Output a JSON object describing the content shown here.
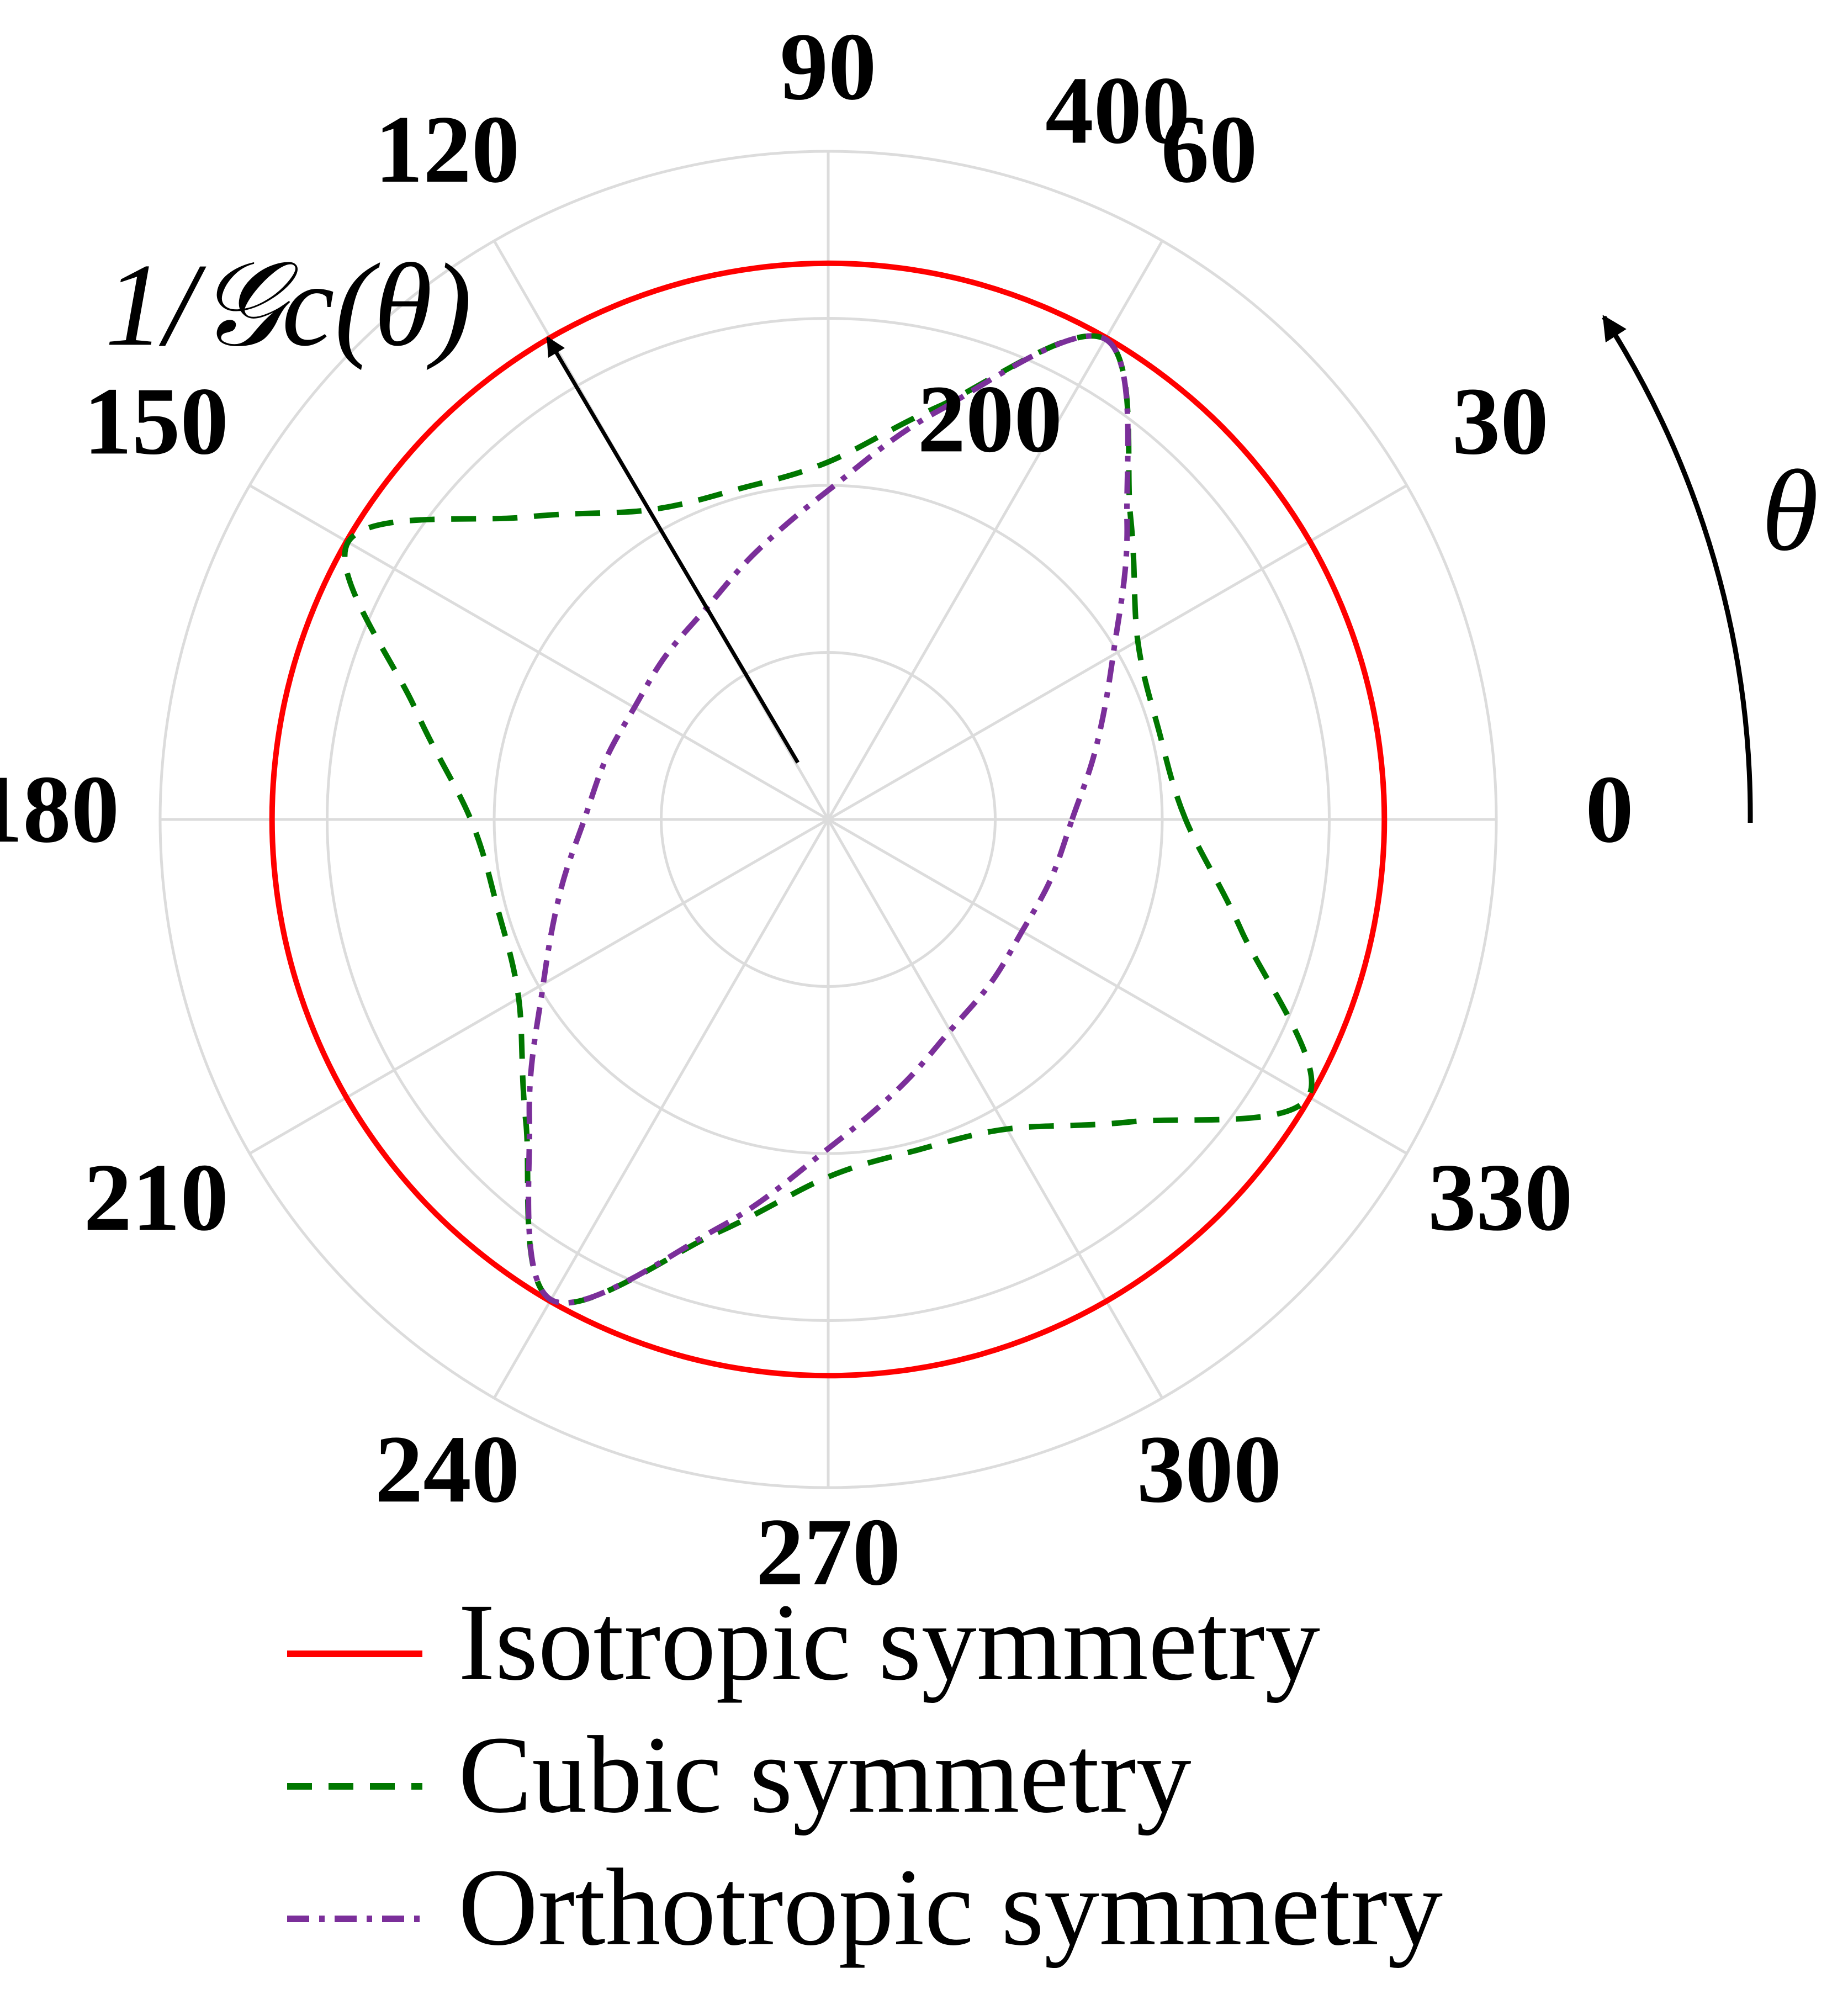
{
  "chart_data": {
    "type": "polar",
    "annotation": "1/𝒢c(θ)",
    "angle_label": "θ",
    "x": [
      0,
      15,
      30,
      45,
      60,
      75,
      90,
      105,
      120,
      135,
      150,
      165,
      180,
      195,
      210,
      225,
      240,
      255,
      270,
      285,
      300,
      315,
      330,
      345
    ],
    "xlim": [
      0,
      360
    ],
    "xticks": [
      0,
      30,
      60,
      90,
      120,
      150,
      180,
      210,
      240,
      270,
      300,
      330
    ],
    "ylim": [
      0,
      400
    ],
    "yticks": [
      {
        "value": 100,
        "label": null
      },
      200,
      {
        "value": 300,
        "label": null
      },
      400
    ],
    "ytick_angle": 67.5,
    "grid": true,
    "series": [
      {
        "name": "Isotropic symmetry",
        "color": "#ff0000",
        "linestyle": "solid",
        "values": [
          333,
          333,
          333,
          333,
          333,
          333,
          333,
          333,
          333,
          333,
          333,
          333,
          333,
          333,
          333,
          333,
          333,
          333,
          333,
          333,
          333,
          333,
          333,
          333
        ]
      },
      {
        "name": "Cubic symmetry",
        "color": "#007700",
        "linestyle": "dashed",
        "values": [
          214,
          205,
          214,
          256,
          332,
          256,
          214,
          205,
          214,
          256,
          332,
          256,
          214,
          205,
          214,
          256,
          332,
          256,
          214,
          205,
          214,
          256,
          332,
          256
        ]
      },
      {
        "name": "Orthotropic symmetry",
        "color": "#7b2f9a",
        "linestyle": "dashdot",
        "values": [
          146,
          166,
          197,
          253,
          332,
          253,
          197,
          166,
          146,
          138,
          134,
          138,
          146,
          166,
          197,
          253,
          332,
          253,
          197,
          166,
          146,
          138,
          134,
          138
        ]
      }
    ]
  }
}
